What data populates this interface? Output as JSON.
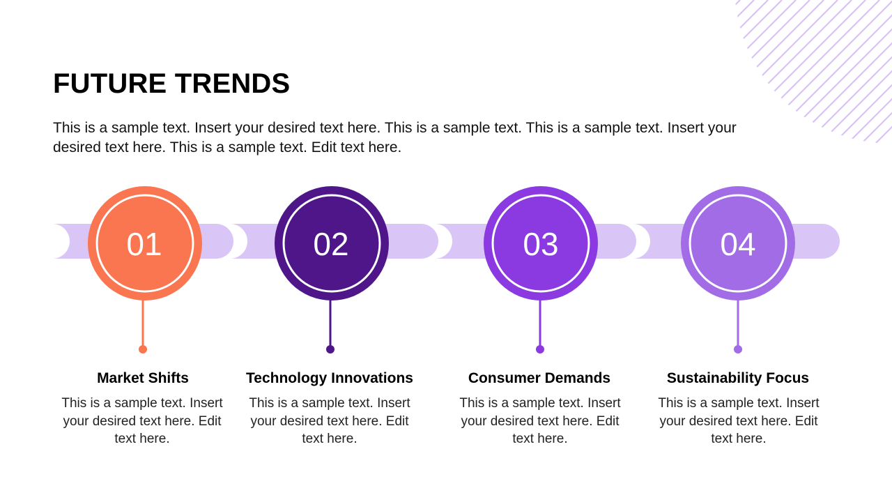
{
  "slide": {
    "title": "FUTURE TRENDS",
    "intro": "This is a sample text. Insert your desired text here. This is a sample text. This is a sample text. Insert your desired text here. This is a sample text. Edit text here."
  },
  "colors": {
    "track": "#d9c6f6",
    "stripes": "#d6c4f4",
    "step1": "#f97651",
    "step2": "#4e1689",
    "step3": "#8a3ae0",
    "step4": "#a26ce6"
  },
  "steps": [
    {
      "number": "01",
      "title": "Market Shifts",
      "text": "This is a sample text. Insert your desired text here. Edit text here.",
      "icon": "numbered-circle"
    },
    {
      "number": "02",
      "title": "Technology Innovations",
      "text": "This is a sample text. Insert your desired text here. Edit text here.",
      "icon": "numbered-circle"
    },
    {
      "number": "03",
      "title": "Consumer Demands",
      "text": "This is a sample text. Insert your desired text here. Edit text here.",
      "icon": "numbered-circle"
    },
    {
      "number": "04",
      "title": "Sustainability Focus",
      "text": "This is a sample text. Insert your desired text here. Edit text here.",
      "icon": "numbered-circle"
    }
  ]
}
